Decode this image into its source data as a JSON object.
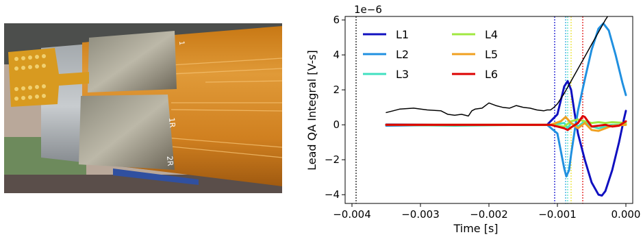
{
  "photo": {
    "labels": [
      "1R",
      "2R",
      "1"
    ]
  },
  "chart_data": {
    "type": "line",
    "title": "",
    "xlabel": "Time [s]",
    "ylabel": "Lead QA Integral [V-s]",
    "y_offset_label": "1e−6",
    "xlim": [
      -0.0041,
      0.0001
    ],
    "ylim": [
      -4.5,
      6.2
    ],
    "xticks": [
      -0.004,
      -0.003,
      -0.002,
      -0.001,
      0.0
    ],
    "xtick_labels": [
      "−0.004",
      "−0.003",
      "−0.002",
      "−0.001",
      "0.000"
    ],
    "yticks": [
      -4,
      -2,
      0,
      2,
      4,
      6
    ],
    "ytick_labels": [
      "−4",
      "−2",
      "0",
      "2",
      "4",
      "6"
    ],
    "grid": false,
    "legend_placement": "top-left",
    "vlines": [
      {
        "x": -0.00394,
        "color": "#000000"
      },
      {
        "x": -0.00104,
        "color": "#0000cc"
      },
      {
        "x": -0.00088,
        "color": "#1ea0e0"
      },
      {
        "x": -0.00085,
        "color": "#40e0c0"
      },
      {
        "x": -0.0008,
        "color": "#e8e020"
      },
      {
        "x": -0.00063,
        "color": "#dd0000"
      }
    ],
    "series": [
      {
        "name": "L1",
        "color": "#1010c0",
        "points": [
          [
            -0.0035,
            0.02
          ],
          [
            -0.0025,
            0.0
          ],
          [
            -0.0015,
            0.0
          ],
          [
            -0.00115,
            0.0
          ],
          [
            -0.001,
            0.6
          ],
          [
            -0.00095,
            1.4
          ],
          [
            -0.0009,
            2.2
          ],
          [
            -0.00085,
            2.5
          ],
          [
            -0.0008,
            2.0
          ],
          [
            -0.00075,
            0.7
          ],
          [
            -0.0007,
            -0.5
          ],
          [
            -0.0006,
            -2.0
          ],
          [
            -0.0005,
            -3.3
          ],
          [
            -0.0004,
            -4.0
          ],
          [
            -0.00035,
            -4.05
          ],
          [
            -0.0003,
            -3.8
          ],
          [
            -0.0002,
            -2.6
          ],
          [
            -0.0001,
            -1.0
          ],
          [
            -3e-05,
            0.3
          ],
          [
            0.0,
            0.8
          ]
        ]
      },
      {
        "name": "L2",
        "color": "#2090e0",
        "points": [
          [
            -0.0035,
            -0.05
          ],
          [
            -0.0025,
            0.0
          ],
          [
            -0.0015,
            0.0
          ],
          [
            -0.00115,
            0.0
          ],
          [
            -0.001,
            -0.5
          ],
          [
            -0.00095,
            -1.5
          ],
          [
            -0.0009,
            -2.5
          ],
          [
            -0.00087,
            -2.95
          ],
          [
            -0.00083,
            -2.6
          ],
          [
            -0.0008,
            -1.7
          ],
          [
            -0.00075,
            -0.4
          ],
          [
            -0.0007,
            0.8
          ],
          [
            -0.0006,
            2.6
          ],
          [
            -0.0005,
            4.3
          ],
          [
            -0.0004,
            5.5
          ],
          [
            -0.00033,
            5.8
          ],
          [
            -0.00025,
            5.4
          ],
          [
            -0.00015,
            4.0
          ],
          [
            -5e-05,
            2.4
          ],
          [
            0.0,
            1.7
          ]
        ]
      },
      {
        "name": "L3",
        "color": "#40e0c0",
        "points": [
          [
            -0.0035,
            0.0
          ],
          [
            -0.0025,
            -0.05
          ],
          [
            -0.0015,
            0.0
          ],
          [
            -0.0011,
            0.0
          ],
          [
            -0.0009,
            0.1
          ],
          [
            -0.00085,
            -0.2
          ],
          [
            -0.0008,
            0.1
          ],
          [
            -0.0007,
            -0.1
          ],
          [
            -0.0006,
            0.2
          ],
          [
            -0.0005,
            -0.1
          ],
          [
            -0.0004,
            -0.2
          ],
          [
            -0.0003,
            -0.1
          ],
          [
            -0.0002,
            0.0
          ],
          [
            0.0,
            0.0
          ]
        ]
      },
      {
        "name": "L4",
        "color": "#a0e840",
        "points": [
          [
            -0.0035,
            0.0
          ],
          [
            -0.0025,
            0.0
          ],
          [
            -0.0015,
            0.0
          ],
          [
            -0.0011,
            0.0
          ],
          [
            -0.0009,
            -0.1
          ],
          [
            -0.0008,
            0.2
          ],
          [
            -0.0007,
            0.3
          ],
          [
            -0.0006,
            0.2
          ],
          [
            -0.0005,
            0.1
          ],
          [
            -0.0004,
            0.15
          ],
          [
            -0.0003,
            0.1
          ],
          [
            -0.0002,
            0.15
          ],
          [
            0.0,
            0.1
          ]
        ]
      },
      {
        "name": "L5",
        "color": "#f0a020",
        "points": [
          [
            -0.0035,
            0.0
          ],
          [
            -0.0025,
            0.0
          ],
          [
            -0.0015,
            0.0
          ],
          [
            -0.0011,
            0.0
          ],
          [
            -0.00095,
            0.2
          ],
          [
            -0.00088,
            0.45
          ],
          [
            -0.0008,
            0.1
          ],
          [
            -0.0007,
            -0.2
          ],
          [
            -0.0006,
            0.1
          ],
          [
            -0.0005,
            -0.3
          ],
          [
            -0.0004,
            -0.35
          ],
          [
            -0.0003,
            -0.2
          ],
          [
            -0.0002,
            -0.05
          ],
          [
            0.0,
            0.0
          ]
        ]
      },
      {
        "name": "L6",
        "color": "#dd0000",
        "points": [
          [
            -0.0035,
            0.0
          ],
          [
            -0.0025,
            0.0
          ],
          [
            -0.0015,
            0.0
          ],
          [
            -0.0011,
            0.0
          ],
          [
            -0.0009,
            -0.2
          ],
          [
            -0.00085,
            -0.3
          ],
          [
            -0.0008,
            -0.15
          ],
          [
            -0.0007,
            0.1
          ],
          [
            -0.00063,
            0.5
          ],
          [
            -0.0006,
            0.45
          ],
          [
            -0.0005,
            -0.1
          ],
          [
            -0.0004,
            -0.05
          ],
          [
            -0.0003,
            0.0
          ],
          [
            -0.0002,
            -0.1
          ],
          [
            -0.0001,
            -0.05
          ],
          [
            0.0,
            0.2
          ]
        ]
      },
      {
        "color": "#000000",
        "points": [
          [
            -0.0035,
            0.7
          ],
          [
            -0.0034,
            0.8
          ],
          [
            -0.0033,
            0.9
          ],
          [
            -0.0031,
            0.95
          ],
          [
            -0.0029,
            0.85
          ],
          [
            -0.0027,
            0.8
          ],
          [
            -0.0026,
            0.6
          ],
          [
            -0.0025,
            0.55
          ],
          [
            -0.0024,
            0.6
          ],
          [
            -0.0023,
            0.5
          ],
          [
            -0.00225,
            0.8
          ],
          [
            -0.0022,
            0.9
          ],
          [
            -0.0021,
            0.95
          ],
          [
            -0.002,
            1.25
          ],
          [
            -0.0019,
            1.1
          ],
          [
            -0.0018,
            1.0
          ],
          [
            -0.0017,
            0.95
          ],
          [
            -0.0016,
            1.1
          ],
          [
            -0.0015,
            1.0
          ],
          [
            -0.0014,
            0.95
          ],
          [
            -0.0013,
            0.85
          ],
          [
            -0.0012,
            0.8
          ],
          [
            -0.00115,
            0.85
          ],
          [
            -0.0011,
            0.85
          ],
          [
            -0.00105,
            1.0
          ],
          [
            -0.001,
            1.2
          ],
          [
            -0.0009,
            1.8
          ],
          [
            -0.0008,
            2.5
          ],
          [
            -0.0007,
            3.2
          ],
          [
            -0.0006,
            3.9
          ],
          [
            -0.0005,
            4.6
          ],
          [
            -0.0004,
            5.3
          ],
          [
            -0.0003,
            6.0
          ],
          [
            -0.0002,
            6.6
          ],
          [
            -0.0001,
            7.2
          ]
        ]
      }
    ]
  }
}
